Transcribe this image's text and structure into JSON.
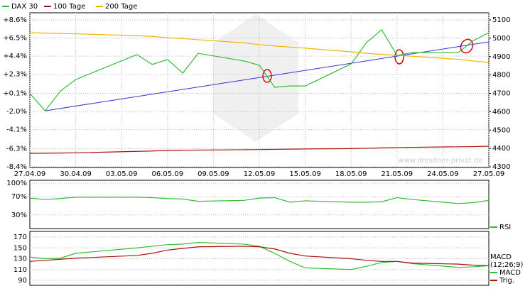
{
  "chart_data": [
    {
      "type": "line",
      "x": [
        "27.04.09",
        "28.04.09",
        "29.04.09",
        "30.04.09",
        "04.05.09",
        "05.05.09",
        "06.05.09",
        "07.05.09",
        "08.05.09",
        "11.05.09",
        "12.05.09",
        "13.05.09",
        "14.05.09",
        "15.05.09",
        "18.05.09",
        "19.05.09",
        "20.05.09",
        "21.05.09",
        "22.05.09",
        "25.05.09",
        "26.05.09",
        "27.05.09"
      ],
      "xlim": [
        "27.04.09",
        "27.05.09"
      ],
      "xticks": [
        "27.04.09",
        "30.04.09",
        "03.05.09",
        "06.05.09",
        "09.05.09",
        "12.05.09",
        "15.05.09",
        "18.05.09",
        "21.05.09",
        "24.05.09",
        "27.05.09"
      ],
      "ylim": [
        -8.4,
        8.6
      ],
      "yticks": [
        {
          "value": 8.6,
          "label": "+8.6%"
        },
        {
          "value": 6.5,
          "label": "+6.5%"
        },
        {
          "value": 4.4,
          "label": "+4.4%"
        },
        {
          "value": 2.3,
          "label": "+2.3%"
        },
        {
          "value": 0.1,
          "label": "+0.1%"
        },
        {
          "value": -2.0,
          "label": "-2.0%"
        },
        {
          "value": -4.1,
          "label": "-4.1%"
        },
        {
          "value": -6.3,
          "label": "-6.3%"
        },
        {
          "value": -8.4,
          "label": "-8.4%"
        }
      ],
      "y2lim": [
        4300,
        5100
      ],
      "y2ticks": [
        5100,
        5000,
        4900,
        4800,
        4700,
        4600,
        4500,
        4400,
        4300
      ],
      "grid": true,
      "series": [
        {
          "name": "DAX 30",
          "color": "#33bb33",
          "axis": "y2",
          "values": [
            4700,
            4605,
            4713,
            4775,
            4911,
            4857,
            4884,
            4810,
            4918,
            4876,
            4853,
            4733,
            4740,
            4740,
            4860,
            4976,
            5046,
            4907,
            4922,
            4922,
            4988,
            5030
          ]
        },
        {
          "name": "100 Tage",
          "color": "#aa1111",
          "axis": "y2",
          "values": [
            4373,
            4374,
            4375,
            4376,
            4384,
            4386,
            4389,
            4390,
            4391,
            4393,
            4394,
            4395,
            4396,
            4397,
            4399,
            4401,
            4403,
            4405,
            4406,
            4409,
            4410,
            4412
          ]
        },
        {
          "name": "200 Tage",
          "color": "#f0b400",
          "axis": "y2",
          "values": [
            5030,
            5028,
            5026,
            5024,
            5014,
            5010,
            5003,
            4998,
            4992,
            4975,
            4965,
            4958,
            4952,
            4946,
            4926,
            4918,
            4912,
            4907,
            4902,
            4885,
            4876,
            4868
          ]
        }
      ],
      "trend_line": {
        "color": "#3333cc",
        "x": [
          "28.04.09",
          "27.05.09"
        ],
        "values": [
          4605,
          4980
        ]
      },
      "watermark": "www.dresdner-privat.de"
    },
    {
      "type": "line",
      "x": [
        "27.04.09",
        "28.04.09",
        "29.04.09",
        "30.04.09",
        "04.05.09",
        "05.05.09",
        "06.05.09",
        "07.05.09",
        "08.05.09",
        "11.05.09",
        "12.05.09",
        "13.05.09",
        "14.05.09",
        "15.05.09",
        "18.05.09",
        "19.05.09",
        "20.05.09",
        "21.05.09",
        "22.05.09",
        "25.05.09",
        "26.05.09",
        "27.05.09"
      ],
      "xlim": [
        "27.04.09",
        "27.05.09"
      ],
      "ylim": [
        0,
        100
      ],
      "yticks": [
        {
          "value": 100,
          "label": "100%"
        },
        {
          "value": 70,
          "label": "70%"
        },
        {
          "value": 30,
          "label": "30%"
        }
      ],
      "grid": true,
      "series": [
        {
          "name": "RSI",
          "color": "#33bb33",
          "values": [
            67,
            64,
            66,
            69,
            69,
            68,
            66,
            65,
            60,
            62,
            67,
            68,
            58,
            61,
            58,
            58,
            59,
            68,
            64,
            55,
            57,
            62
          ]
        }
      ]
    },
    {
      "type": "line",
      "title": "MACD",
      "subtitle": "(12;26;9)",
      "x": [
        "27.04.09",
        "28.04.09",
        "29.04.09",
        "30.04.09",
        "04.05.09",
        "05.05.09",
        "06.05.09",
        "07.05.09",
        "08.05.09",
        "11.05.09",
        "12.05.09",
        "13.05.09",
        "14.05.09",
        "15.05.09",
        "18.05.09",
        "19.05.09",
        "20.05.09",
        "21.05.09",
        "22.05.09",
        "25.05.09",
        "26.05.09",
        "27.05.09"
      ],
      "xlim": [
        "27.04.09",
        "27.05.09"
      ],
      "ylim": [
        90,
        170
      ],
      "yticks": [
        170,
        150,
        130,
        110,
        90
      ],
      "grid": true,
      "series": [
        {
          "name": "MACD",
          "color": "#33bb33",
          "values": [
            133,
            130,
            131,
            140,
            150,
            153,
            156,
            157,
            160,
            157,
            153,
            140,
            125,
            113,
            110,
            116,
            123,
            125,
            121,
            114,
            115,
            117
          ]
        },
        {
          "name": "Trig.",
          "color": "#aa1111",
          "values": [
            125,
            127,
            129,
            131,
            136,
            140,
            146,
            149,
            152,
            153,
            152,
            148,
            140,
            135,
            130,
            127,
            125,
            125,
            122,
            120,
            118,
            117
          ]
        }
      ]
    }
  ]
}
